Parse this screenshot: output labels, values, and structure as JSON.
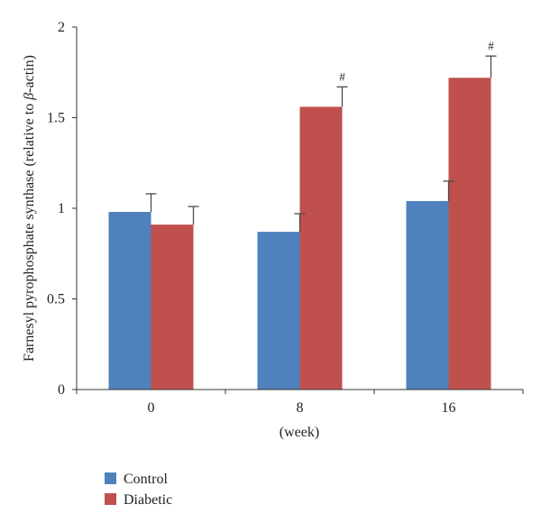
{
  "chart_data": {
    "type": "bar",
    "categories": [
      "0",
      "8",
      "16"
    ],
    "series": [
      {
        "name": "Control",
        "color": "#4f81bd",
        "values": [
          0.98,
          0.87,
          1.04
        ],
        "errors": [
          0.1,
          0.1,
          0.11
        ]
      },
      {
        "name": "Diabetic",
        "color": "#c0504d",
        "values": [
          0.91,
          1.56,
          1.72
        ],
        "errors": [
          0.1,
          0.11,
          0.12
        ]
      }
    ],
    "annotations": [
      {
        "series": "Diabetic",
        "category": "8",
        "text": "#"
      },
      {
        "series": "Diabetic",
        "category": "16",
        "text": "#"
      }
    ],
    "xlabel": "(week)",
    "ylabel_parts": [
      "Farnesyl pyrophosphate synthase (relative to ",
      "β",
      "-actin)"
    ],
    "ylim": [
      0,
      2
    ],
    "yticks": [
      0,
      0.5,
      1,
      1.5,
      2
    ],
    "ytick_labels": [
      "0",
      "0.5",
      "1",
      "1.5",
      "2"
    ],
    "legend_position": "bottom-left",
    "grid": false
  }
}
